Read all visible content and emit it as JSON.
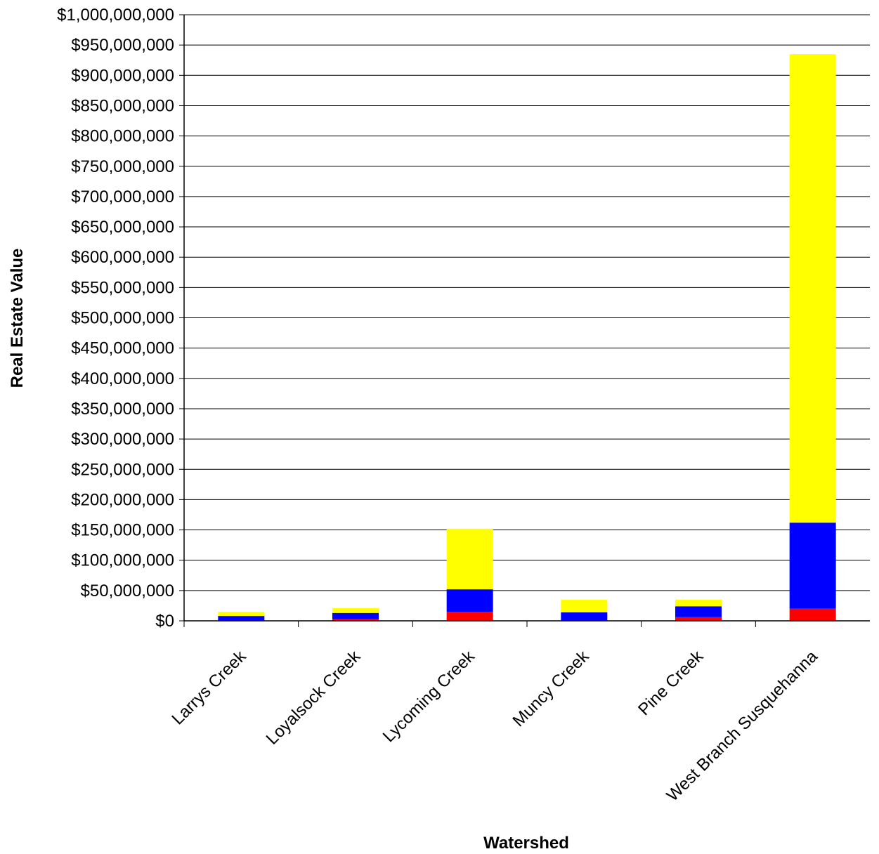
{
  "chart_data": {
    "type": "bar",
    "stacked": true,
    "title": "",
    "xlabel": "Watershed",
    "ylabel": "Real Estate Value",
    "ylim": [
      0,
      1000000000
    ],
    "ytick_step": 50000000,
    "yticks": [
      "$0",
      "$50,000,000",
      "$100,000,000",
      "$150,000,000",
      "$200,000,000",
      "$250,000,000",
      "$300,000,000",
      "$350,000,000",
      "$400,000,000",
      "$450,000,000",
      "$500,000,000",
      "$550,000,000",
      "$600,000,000",
      "$650,000,000",
      "$700,000,000",
      "$750,000,000",
      "$800,000,000",
      "$850,000,000",
      "$900,000,000",
      "$950,000,000",
      "$1,000,000,000"
    ],
    "grid": true,
    "legend": "none",
    "categories": [
      "Larrys Creek",
      "Loyalsock Creek",
      "Lycoming Creek",
      "Muncy Creek",
      "Pine Creek",
      "West Branch Susquehanna"
    ],
    "series": [
      {
        "color": "#ff0000",
        "values": [
          1000000,
          3000000,
          15000000,
          1000000,
          6000000,
          20000000
        ]
      },
      {
        "color": "#0000ff",
        "values": [
          7000000,
          10000000,
          37000000,
          13000000,
          18000000,
          142000000
        ]
      },
      {
        "color": "#ffff00",
        "values": [
          7000000,
          8000000,
          100000000,
          21000000,
          11000000,
          773000000
        ]
      }
    ]
  }
}
